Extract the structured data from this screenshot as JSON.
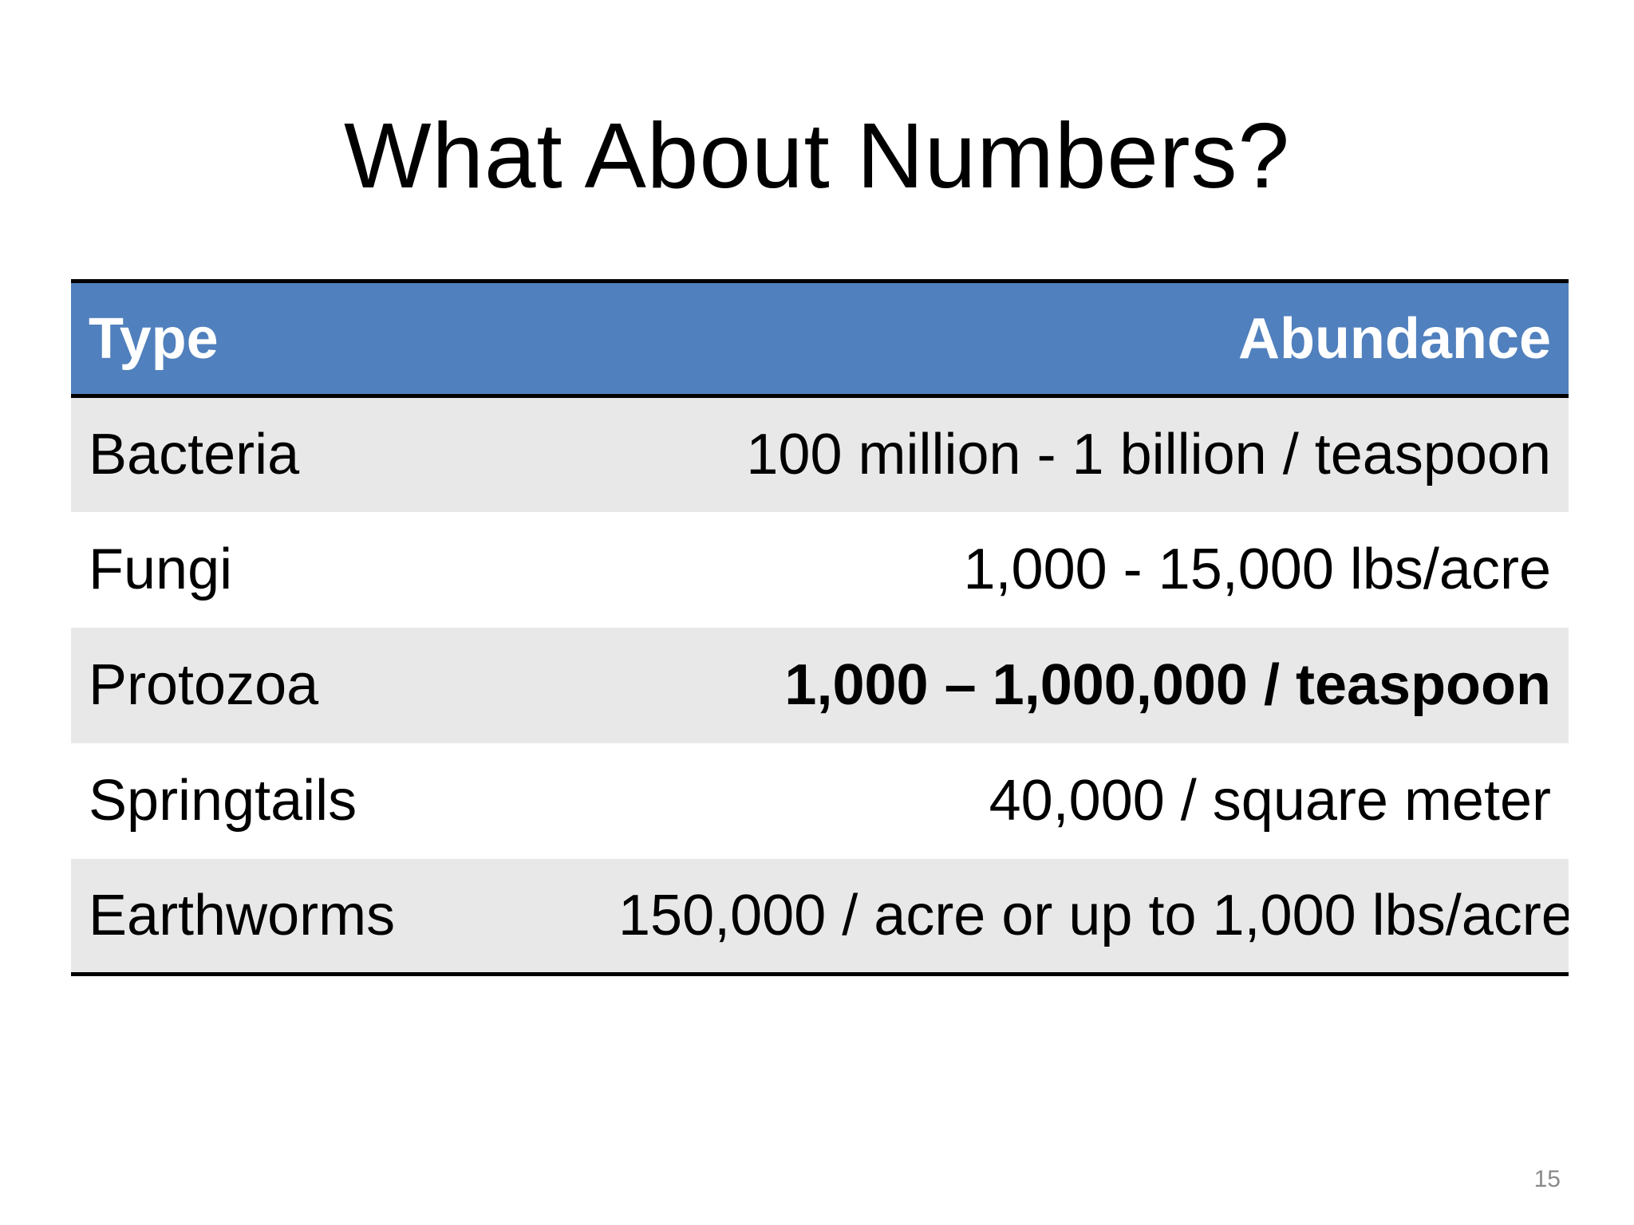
{
  "slide": {
    "title": "What About Numbers?",
    "page_number": "15"
  },
  "table": {
    "header": {
      "type": "Type",
      "abundance": "Abundance"
    },
    "header_color": "#5080bd",
    "band_color": "#e8e8e8",
    "rows": [
      {
        "type": "Bacteria",
        "abundance": "100 million - 1 billion / teaspoon",
        "bold": false
      },
      {
        "type": "Fungi",
        "abundance": "1,000 - 15,000 lbs/acre",
        "bold": false
      },
      {
        "type": "Protozoa",
        "abundance": "1,000 – 1,000,000 / teaspoon",
        "bold": true
      },
      {
        "type": "Springtails",
        "abundance": "40,000 / square meter",
        "bold": false
      },
      {
        "type": "Earthworms",
        "abundance": "150,000 / acre or up to 1,000 lbs/acre",
        "bold": false
      }
    ]
  }
}
